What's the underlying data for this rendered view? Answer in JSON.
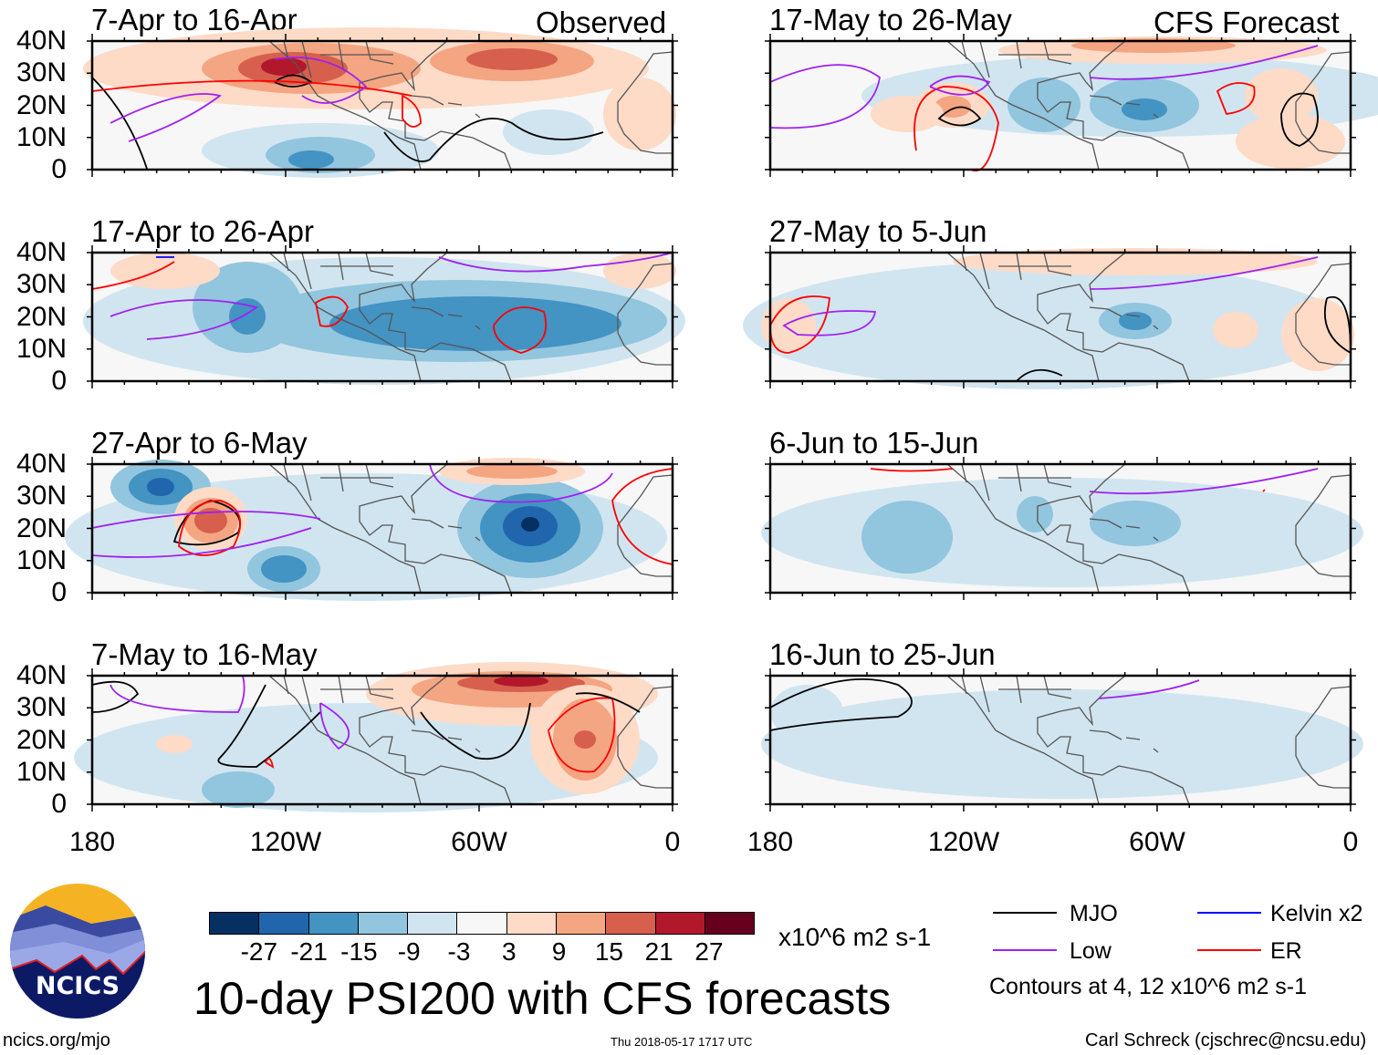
{
  "left_header": "Observed",
  "right_header": "CFS Forecast",
  "panels_left": [
    "7-Apr to 16-Apr",
    "17-Apr to 26-Apr",
    "27-Apr to 6-May",
    "7-May to 16-May"
  ],
  "panels_right": [
    "17-May to 26-May",
    "27-May to 5-Jun",
    "6-Jun to 15-Jun",
    "16-Jun to 25-Jun"
  ],
  "y_ticks": [
    "40N",
    "30N",
    "20N",
    "10N",
    "0"
  ],
  "x_ticks": [
    "180",
    "120W",
    "60W",
    "0"
  ],
  "colorbar": {
    "colors": [
      "#053061",
      "#2166ac",
      "#4393c3",
      "#92c5de",
      "#d1e5f0",
      "#f7f7f7",
      "#fddbc7",
      "#f4a582",
      "#d6604d",
      "#b2182b",
      "#67001f"
    ],
    "labels": [
      "-27",
      "-21",
      "-15",
      "-9",
      "-3",
      "3",
      "9",
      "15",
      "21",
      "27"
    ],
    "units": "x10^6 m2 s-1"
  },
  "title": "10-day PSI200 with CFS forecasts",
  "timestamp": "Thu 2018-05-17 1717 UTC",
  "legend": [
    {
      "label": "MJO",
      "color": "#000000"
    },
    {
      "label": "Kelvin x2",
      "color": "#0000ff"
    },
    {
      "label": "Low",
      "color": "#a020f0"
    },
    {
      "label": "ER",
      "color": "#ff0000"
    }
  ],
  "contour_note": "Contours at 4, 12 x10^6 m2 s-1",
  "logo_text": "NCICS",
  "site": "ncics.org/mjo",
  "author": "Carl Schreck (cjschrec@ncsu.edu)"
}
